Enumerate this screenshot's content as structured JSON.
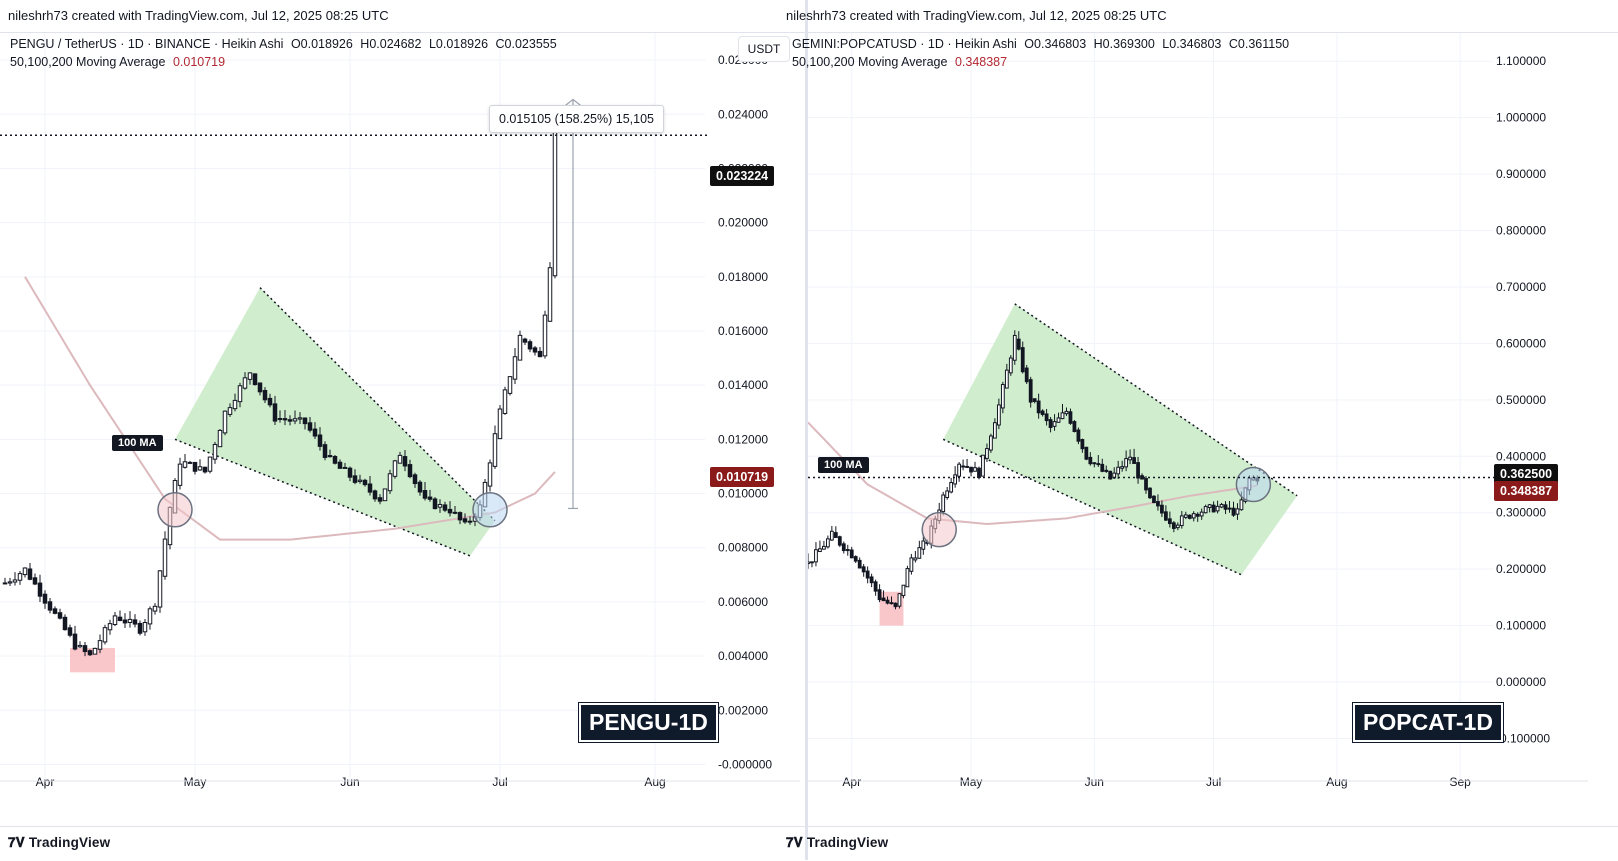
{
  "left": {
    "attribution": "nileshrh73 created with TradingView.com, Jul 12, 2025 08:25 UTC",
    "symbol": "PENGU / TetherUS · 1D · BINANCE · Heikin Ashi",
    "ohlc": {
      "o": "O0.018926",
      "h": "H0.024682",
      "l": "L0.018926",
      "c": "C0.023555"
    },
    "ma_label": "50,100,200 Moving Average",
    "ma_value": "0.010719",
    "currency": "USDT",
    "badge": "PENGU-1D",
    "ma_tag": "100 MA",
    "measure": "0.015105 (158.25%) 15,105",
    "current_price_tag": "0.023224",
    "ma_price_tag": "0.010719",
    "footer_logo": "TradingView",
    "colors": {
      "current_tag": "#0f0f0f",
      "ma_tag": "#8b1a1a",
      "zone_green": "#c7ebc4",
      "ma_line": "#d9b8bc"
    }
  },
  "right": {
    "attribution": "nileshrh73 created with TradingView.com, Jul 12, 2025 08:25 UTC",
    "symbol": "GEMINI:POPCATUSD · 1D · Heikin Ashi",
    "ohlc": {
      "o": "O0.346803",
      "h": "H0.369300",
      "l": "L0.346803",
      "c": "C0.361150"
    },
    "ma_label": "50,100,200 Moving Average",
    "ma_value": "0.348387",
    "badge": "POPCAT-1D",
    "ma_tag": "100 MA",
    "current_price_tag": "0.362500",
    "ma_price_tag": "0.348387",
    "footer_logo": "TradingView",
    "colors": {
      "current_tag": "#0f0f0f",
      "ma_tag": "#8b1a1a",
      "zone_green": "#c7ebc4",
      "ma_line": "#d9b8bc"
    }
  },
  "chart_data": [
    {
      "type": "candlestick",
      "title": "PENGU / TetherUS · 1D · BINANCE · Heikin Ashi",
      "ylim": [
        -0.0005,
        0.027
      ],
      "y_ticks": [
        "0.026000",
        "0.024000",
        "0.022000",
        "0.020000",
        "0.018000",
        "0.016000",
        "0.014000",
        "0.012000",
        "0.010000",
        "0.008000",
        "0.006000",
        "0.004000",
        "0.002000",
        "-0.000000"
      ],
      "y_tick_values": [
        0.026,
        0.024,
        0.022,
        0.02,
        0.018,
        0.016,
        0.014,
        0.012,
        0.01,
        0.008,
        0.006,
        0.004,
        0.002,
        0.0
      ],
      "x_ticks": [
        "Apr",
        "May",
        "Jun",
        "Jul",
        "Aug"
      ],
      "x_range": [
        "2025-03-24",
        "2025-08-10"
      ],
      "x_tick_dates": [
        "2025-04-01",
        "2025-05-01",
        "2025-06-01",
        "2025-07-01",
        "2025-08-01"
      ],
      "current_price": 0.023224,
      "ma100_value": 0.010719,
      "measure": {
        "from": 0.00945,
        "to": 0.02455,
        "change": "0.015105",
        "percent": "158.25%",
        "ticks": "15,105"
      },
      "price_path": [
        [
          "2025-03-24",
          0.0067
        ],
        [
          "2025-03-28",
          0.0072
        ],
        [
          "2025-04-02",
          0.0058
        ],
        [
          "2025-04-07",
          0.0044
        ],
        [
          "2025-04-10",
          0.004
        ],
        [
          "2025-04-15",
          0.0055
        ],
        [
          "2025-04-20",
          0.005
        ],
        [
          "2025-04-23",
          0.006
        ],
        [
          "2025-04-26",
          0.0095
        ],
        [
          "2025-04-28",
          0.0112
        ],
        [
          "2025-05-03",
          0.0108
        ],
        [
          "2025-05-07",
          0.013
        ],
        [
          "2025-05-12",
          0.0145
        ],
        [
          "2025-05-17",
          0.0128
        ],
        [
          "2025-05-23",
          0.0126
        ],
        [
          "2025-05-28",
          0.0112
        ],
        [
          "2025-06-02",
          0.0105
        ],
        [
          "2025-06-07",
          0.0098
        ],
        [
          "2025-06-11",
          0.0115
        ],
        [
          "2025-06-16",
          0.0097
        ],
        [
          "2025-06-21",
          0.0094
        ],
        [
          "2025-06-24",
          0.0088
        ],
        [
          "2025-06-27",
          0.0095
        ],
        [
          "2025-07-01",
          0.013
        ],
        [
          "2025-07-05",
          0.0158
        ],
        [
          "2025-07-09",
          0.015
        ],
        [
          "2025-07-11",
          0.0185
        ],
        [
          "2025-07-12",
          0.0235
        ]
      ],
      "ma100": [
        [
          "2025-03-28",
          0.018
        ],
        [
          "2025-04-10",
          0.014
        ],
        [
          "2025-04-25",
          0.0098
        ],
        [
          "2025-05-06",
          0.0083
        ],
        [
          "2025-05-20",
          0.0083
        ],
        [
          "2025-06-10",
          0.0087
        ],
        [
          "2025-06-30",
          0.0093
        ],
        [
          "2025-07-08",
          0.01
        ],
        [
          "2025-07-12",
          0.0108
        ]
      ],
      "falling_wedge": {
        "upper": [
          [
            "2025-05-14",
            0.0176
          ],
          [
            "2025-06-30",
            0.009
          ]
        ],
        "lower": [
          [
            "2025-04-27",
            0.012
          ],
          [
            "2025-06-25",
            0.0077
          ]
        ]
      },
      "annotations": [
        "100 MA",
        "PENGU-1D"
      ]
    },
    {
      "type": "candlestick",
      "title": "GEMINI:POPCATUSD · 1D · Heikin Ashi",
      "ylim": [
        -0.17,
        1.15
      ],
      "y_ticks": [
        "1.100000",
        "1.000000",
        "0.900000",
        "0.800000",
        "0.700000",
        "0.600000",
        "0.500000",
        "0.400000",
        "0.300000",
        "0.200000",
        "0.100000",
        "0.000000",
        "-0.100000"
      ],
      "y_tick_values": [
        1.1,
        1.0,
        0.9,
        0.8,
        0.7,
        0.6,
        0.5,
        0.4,
        0.3,
        0.2,
        0.1,
        0.0,
        -0.1
      ],
      "x_ticks": [
        "Apr",
        "May",
        "Jun",
        "Jul",
        "Aug",
        "Sep"
      ],
      "x_range": [
        "2025-03-21",
        "2025-09-08"
      ],
      "x_tick_dates": [
        "2025-04-01",
        "2025-05-01",
        "2025-06-01",
        "2025-07-01",
        "2025-08-01",
        "2025-09-01"
      ],
      "current_price": 0.3625,
      "ma100_value": 0.348387,
      "price_path": [
        [
          "2025-03-21",
          0.21
        ],
        [
          "2025-03-27",
          0.26
        ],
        [
          "2025-04-02",
          0.22
        ],
        [
          "2025-04-08",
          0.15
        ],
        [
          "2025-04-12",
          0.13
        ],
        [
          "2025-04-16",
          0.22
        ],
        [
          "2025-04-20",
          0.25
        ],
        [
          "2025-04-24",
          0.33
        ],
        [
          "2025-04-28",
          0.39
        ],
        [
          "2025-05-03",
          0.37
        ],
        [
          "2025-05-08",
          0.49
        ],
        [
          "2025-05-12",
          0.61
        ],
        [
          "2025-05-16",
          0.5
        ],
        [
          "2025-05-21",
          0.45
        ],
        [
          "2025-05-25",
          0.48
        ],
        [
          "2025-05-30",
          0.4
        ],
        [
          "2025-06-05",
          0.36
        ],
        [
          "2025-06-10",
          0.4
        ],
        [
          "2025-06-15",
          0.32
        ],
        [
          "2025-06-21",
          0.28
        ],
        [
          "2025-06-26",
          0.3
        ],
        [
          "2025-07-02",
          0.31
        ],
        [
          "2025-07-07",
          0.3
        ],
        [
          "2025-07-10",
          0.36
        ],
        [
          "2025-07-12",
          0.362
        ]
      ],
      "ma100": [
        [
          "2025-03-21",
          0.46
        ],
        [
          "2025-04-05",
          0.35
        ],
        [
          "2025-04-20",
          0.29
        ],
        [
          "2025-05-05",
          0.28
        ],
        [
          "2025-05-25",
          0.29
        ],
        [
          "2025-06-10",
          0.31
        ],
        [
          "2025-06-25",
          0.33
        ],
        [
          "2025-07-12",
          0.348
        ]
      ],
      "descending_channel": {
        "upper": [
          [
            "2025-05-12",
            0.67
          ],
          [
            "2025-07-22",
            0.33
          ]
        ],
        "lower": [
          [
            "2025-04-24",
            0.43
          ],
          [
            "2025-07-08",
            0.19
          ]
        ]
      },
      "annotations": [
        "100 MA",
        "POPCAT-1D"
      ]
    }
  ]
}
